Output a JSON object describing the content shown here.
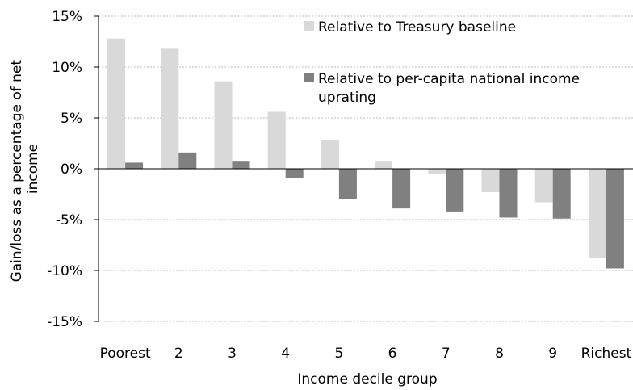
{
  "chart_data": {
    "type": "bar",
    "title": "",
    "xlabel": "Income decile group",
    "ylabel_lines": [
      "Gain/loss as a percentage of net",
      "income"
    ],
    "categories": [
      "Poorest",
      "2",
      "3",
      "4",
      "5",
      "6",
      "7",
      "8",
      "9",
      "Richest"
    ],
    "yticks": [
      "15%",
      "10%",
      "5%",
      "0%",
      "-5%",
      "-10%",
      "-15%"
    ],
    "ylim": [
      -15,
      15
    ],
    "grid": true,
    "legend_position": "top-right",
    "series": [
      {
        "name": "Relative to Treasury baseline",
        "color": "#d9d9d9",
        "values": [
          12.8,
          11.8,
          8.6,
          5.6,
          2.8,
          0.7,
          -0.5,
          -2.3,
          -3.3,
          -8.8
        ]
      },
      {
        "name": "Relative to per-capita national income uprating",
        "name_lines": [
          "Relative to per-capita national income",
          "uprating"
        ],
        "color": "#808080",
        "values": [
          0.6,
          1.6,
          0.7,
          -0.9,
          -3.0,
          -3.9,
          -4.2,
          -4.8,
          -4.9,
          -9.8
        ]
      }
    ]
  }
}
